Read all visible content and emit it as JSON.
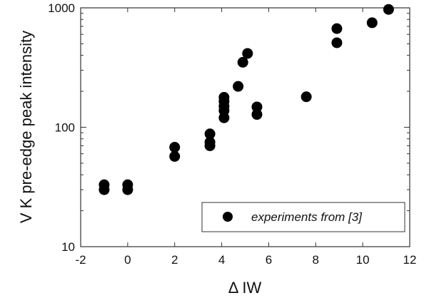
{
  "chart_data": {
    "type": "scatter",
    "title": "",
    "xlabel": "Δ IW",
    "ylabel": "V K pre-edge peak intensity",
    "xlim": [
      -2,
      12
    ],
    "ylim": [
      10,
      1000
    ],
    "yscale": "log",
    "xticks": [
      -2,
      0,
      2,
      4,
      6,
      8,
      10,
      12
    ],
    "yticks": [
      10,
      100,
      1000
    ],
    "grid": false,
    "legend": {
      "position": "bottom-right",
      "entries": [
        "experiments from [3]"
      ]
    },
    "colors": {
      "marker": "#000000",
      "axis": "#333333"
    },
    "series": [
      {
        "name": "experiments from [3]",
        "points": [
          {
            "x": -1.0,
            "y": 33
          },
          {
            "x": -1.0,
            "y": 30
          },
          {
            "x": 0.0,
            "y": 33
          },
          {
            "x": 0.0,
            "y": 30
          },
          {
            "x": 2.0,
            "y": 68
          },
          {
            "x": 2.0,
            "y": 57
          },
          {
            "x": 3.5,
            "y": 88
          },
          {
            "x": 3.5,
            "y": 75
          },
          {
            "x": 3.5,
            "y": 70
          },
          {
            "x": 4.1,
            "y": 178
          },
          {
            "x": 4.1,
            "y": 165
          },
          {
            "x": 4.1,
            "y": 150
          },
          {
            "x": 4.1,
            "y": 138
          },
          {
            "x": 4.1,
            "y": 120
          },
          {
            "x": 4.7,
            "y": 220
          },
          {
            "x": 4.9,
            "y": 350
          },
          {
            "x": 5.1,
            "y": 415
          },
          {
            "x": 5.5,
            "y": 148
          },
          {
            "x": 5.5,
            "y": 128
          },
          {
            "x": 7.6,
            "y": 180
          },
          {
            "x": 8.9,
            "y": 670
          },
          {
            "x": 8.9,
            "y": 510
          },
          {
            "x": 10.4,
            "y": 750
          },
          {
            "x": 11.1,
            "y": 970
          }
        ]
      }
    ]
  }
}
